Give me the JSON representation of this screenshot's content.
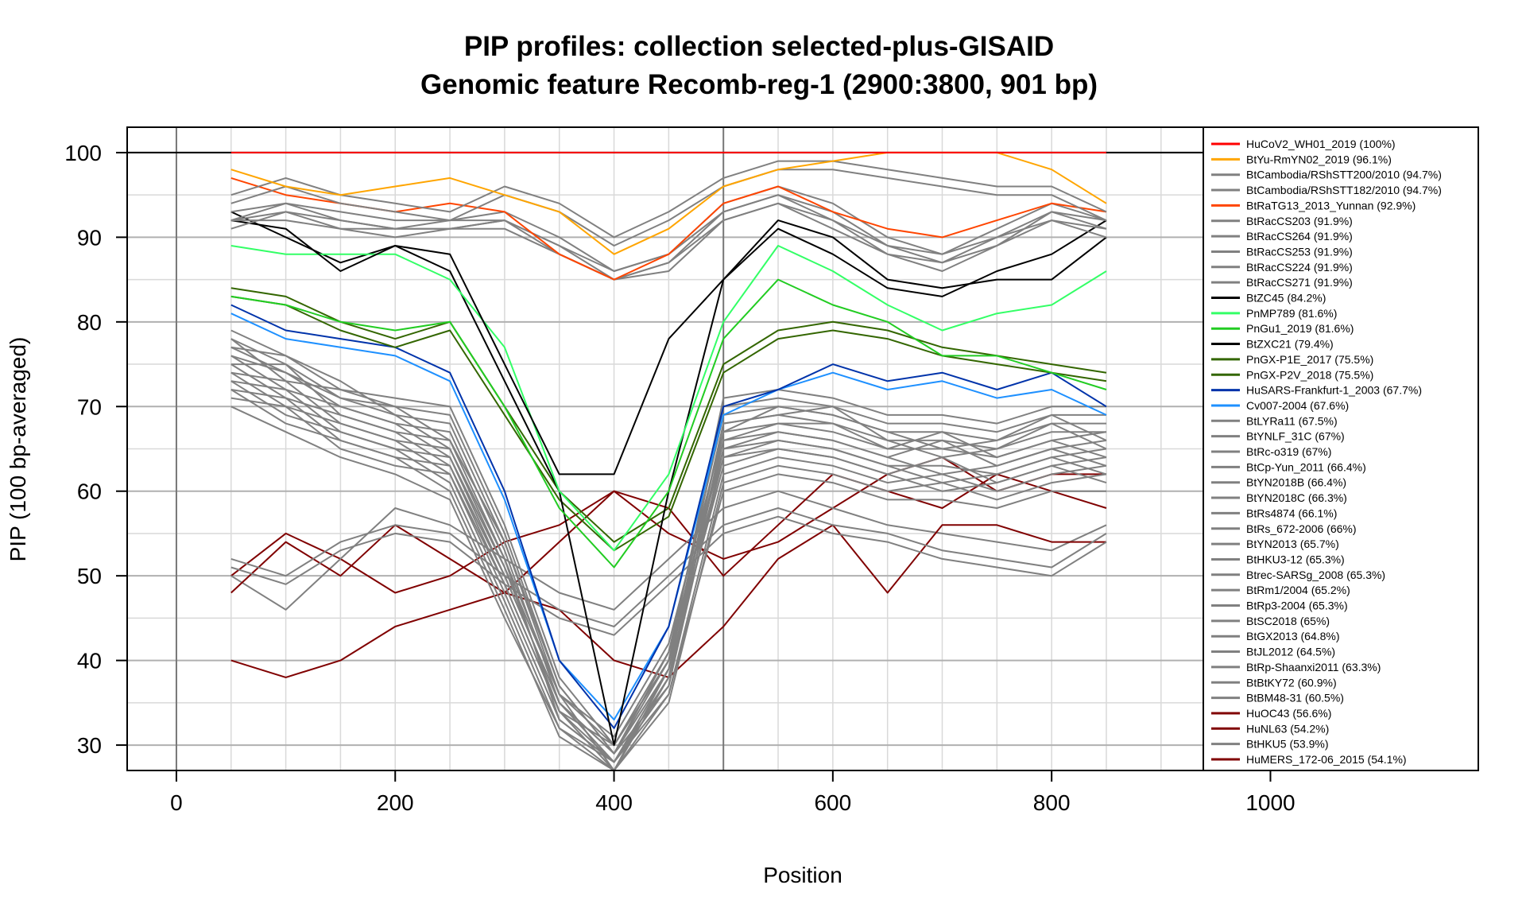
{
  "chart_data": {
    "type": "line",
    "title": "PIP profiles: collection selected-plus-GISAID",
    "subtitle": "Genomic feature Recomb-reg-1 (2900:3800, 901 bp)",
    "xlabel": "Position",
    "ylabel": "PIP (100 bp-averaged)",
    "xlim": [
      -45,
      1190
    ],
    "ylim": [
      27,
      103
    ],
    "xticks": [
      0,
      200,
      400,
      600,
      800,
      1000
    ],
    "yticks": [
      30,
      40,
      50,
      60,
      70,
      80,
      90,
      100
    ],
    "x_tick_labels": [
      "0",
      "200",
      "400",
      "600",
      "800",
      "1000"
    ],
    "y_tick_labels": [
      "30",
      "40",
      "50",
      "60",
      "70",
      "80",
      "90",
      "100"
    ],
    "grid": true,
    "legend_position": "right",
    "reference_lines": {
      "vertical_x": [
        0,
        500
      ],
      "horizontal_y": [
        100
      ]
    },
    "x": [
      50,
      100,
      150,
      200,
      250,
      300,
      350,
      400,
      450,
      500,
      550,
      600,
      650,
      700,
      750,
      800,
      850
    ],
    "series": [
      {
        "name": "HuCoV2_WH01_2019 (100%)",
        "color": "#ff0000",
        "values": [
          100,
          100,
          100,
          100,
          100,
          100,
          100,
          100,
          100,
          100,
          100,
          100,
          100,
          100,
          100,
          100,
          100
        ]
      },
      {
        "name": "BtYu-RmYN02_2019 (96.1%)",
        "color": "#ffa500",
        "values": [
          98,
          96,
          95,
          96,
          97,
          95,
          93,
          88,
          91,
          96,
          98,
          99,
          100,
          100,
          100,
          98,
          94
        ]
      },
      {
        "name": "BtCambodia/RShSTT200/2010 (94.7%)",
        "color": "#808080",
        "values": [
          95,
          97,
          95,
          94,
          93,
          96,
          94,
          90,
          93,
          97,
          99,
          99,
          98,
          97,
          96,
          96,
          93
        ]
      },
      {
        "name": "BtCambodia/RShSTT182/2010 (94.7%)",
        "color": "#808080",
        "values": [
          94,
          96,
          94,
          93,
          92,
          95,
          93,
          89,
          92,
          96,
          98,
          98,
          97,
          96,
          95,
          95,
          92
        ]
      },
      {
        "name": "BtRaTG13_2013_Yunnan (92.9%)",
        "color": "#ff4500",
        "values": [
          97,
          95,
          94,
          93,
          94,
          93,
          88,
          85,
          88,
          94,
          96,
          93,
          91,
          90,
          92,
          94,
          93
        ]
      },
      {
        "name": "BtRacCS203 (91.9%)",
        "color": "#808080",
        "values": [
          93,
          94,
          93,
          92,
          92,
          93,
          90,
          86,
          88,
          94,
          96,
          94,
          90,
          88,
          91,
          94,
          92
        ]
      },
      {
        "name": "BtRacCS264 (91.9%)",
        "color": "#808080",
        "values": [
          92,
          93,
          92,
          91,
          91,
          92,
          89,
          85,
          87,
          93,
          95,
          93,
          89,
          87,
          90,
          93,
          91
        ]
      },
      {
        "name": "BtRacCS253 (91.9%)",
        "color": "#808080",
        "values": [
          92,
          94,
          92,
          91,
          92,
          92,
          89,
          86,
          88,
          93,
          95,
          92,
          89,
          88,
          90,
          92,
          91
        ]
      },
      {
        "name": "BtRacCS224 (91.9%)",
        "color": "#808080",
        "values": [
          91,
          93,
          91,
          90,
          91,
          91,
          88,
          85,
          87,
          92,
          94,
          92,
          88,
          87,
          89,
          92,
          90
        ]
      },
      {
        "name": "BtRacCS271 (91.9%)",
        "color": "#808080",
        "values": [
          92,
          92,
          91,
          91,
          91,
          92,
          88,
          85,
          86,
          92,
          94,
          91,
          88,
          86,
          89,
          93,
          92
        ]
      },
      {
        "name": "BtZC45 (84.2%)",
        "color": "#000000",
        "values": [
          92,
          91,
          86,
          89,
          88,
          75,
          62,
          62,
          78,
          85,
          92,
          90,
          85,
          84,
          85,
          85,
          90
        ]
      },
      {
        "name": "PnMP789 (81.6%)",
        "color": "#33ff66",
        "values": [
          89,
          88,
          88,
          88,
          85,
          77,
          60,
          53,
          62,
          80,
          89,
          86,
          82,
          79,
          81,
          82,
          86
        ]
      },
      {
        "name": "PnGu1_2019 (81.6%)",
        "color": "#22cc22",
        "values": [
          83,
          82,
          80,
          79,
          80,
          70,
          58,
          51,
          60,
          78,
          85,
          82,
          80,
          76,
          76,
          74,
          72
        ]
      },
      {
        "name": "BtZXC21 (79.4%)",
        "color": "#000000",
        "values": [
          93,
          90,
          87,
          89,
          86,
          73,
          60,
          30,
          60,
          85,
          91,
          88,
          84,
          83,
          86,
          88,
          92
        ]
      },
      {
        "name": "PnGX-P1E_2017 (75.5%)",
        "color": "#336600",
        "values": [
          84,
          83,
          80,
          78,
          80,
          70,
          60,
          54,
          58,
          75,
          79,
          80,
          79,
          77,
          76,
          75,
          74
        ]
      },
      {
        "name": "PnGX-P2V_2018 (75.5%)",
        "color": "#336600",
        "values": [
          83,
          82,
          79,
          77,
          79,
          69,
          59,
          53,
          57,
          74,
          78,
          79,
          78,
          76,
          75,
          74,
          73
        ]
      },
      {
        "name": "HuSARS-Frankfurt-1_2003 (67.7%)",
        "color": "#0033aa",
        "values": [
          82,
          79,
          78,
          77,
          74,
          60,
          40,
          32,
          44,
          70,
          72,
          75,
          73,
          74,
          72,
          74,
          70
        ]
      },
      {
        "name": "Cv007-2004 (67.6%)",
        "color": "#1e90ff",
        "values": [
          81,
          78,
          77,
          76,
          73,
          59,
          40,
          33,
          44,
          69,
          72,
          74,
          72,
          73,
          71,
          72,
          69
        ]
      },
      {
        "name": "BtLYRa11 (67.5%)",
        "color": "#808080",
        "values": [
          79,
          76,
          72,
          71,
          70,
          56,
          38,
          30,
          40,
          71,
          72,
          71,
          69,
          69,
          68,
          70,
          70
        ]
      },
      {
        "name": "BtYNLF_31C (67%)",
        "color": "#808080",
        "values": [
          78,
          75,
          71,
          70,
          69,
          55,
          37,
          29,
          39,
          70,
          71,
          70,
          68,
          68,
          67,
          69,
          69
        ]
      },
      {
        "name": "BtRc-o319 (67%)",
        "color": "#808080",
        "values": [
          77,
          76,
          73,
          69,
          68,
          54,
          36,
          30,
          41,
          69,
          70,
          69,
          67,
          67,
          66,
          68,
          68
        ]
      },
      {
        "name": "BtCp-Yun_2011 (66.4%)",
        "color": "#808080",
        "values": [
          76,
          74,
          70,
          68,
          67,
          53,
          35,
          28,
          38,
          68,
          69,
          68,
          66,
          66,
          65,
          67,
          67
        ]
      },
      {
        "name": "BtYN2018B (66.4%)",
        "color": "#808080",
        "values": [
          78,
          73,
          72,
          70,
          66,
          52,
          36,
          31,
          42,
          67,
          70,
          69,
          67,
          65,
          66,
          69,
          66
        ]
      },
      {
        "name": "BtYN2018C (66.3%)",
        "color": "#808080",
        "values": [
          75,
          75,
          69,
          67,
          66,
          54,
          37,
          29,
          40,
          66,
          68,
          67,
          65,
          67,
          64,
          66,
          67
        ]
      },
      {
        "name": "BtRs4874 (66.1%)",
        "color": "#808080",
        "values": [
          77,
          74,
          71,
          69,
          65,
          51,
          34,
          27,
          39,
          68,
          69,
          70,
          66,
          64,
          65,
          68,
          65
        ]
      },
      {
        "name": "BtRs_672-2006 (66%)",
        "color": "#808080",
        "values": [
          76,
          72,
          70,
          68,
          64,
          50,
          35,
          29,
          41,
          65,
          67,
          66,
          64,
          66,
          63,
          65,
          66
        ]
      },
      {
        "name": "BtYN2013 (65.7%)",
        "color": "#808080",
        "values": [
          74,
          73,
          68,
          66,
          65,
          52,
          33,
          28,
          37,
          67,
          68,
          68,
          65,
          65,
          64,
          66,
          64
        ]
      },
      {
        "name": "BtHKU3-12 (65.3%)",
        "color": "#808080",
        "values": [
          75,
          71,
          69,
          67,
          63,
          49,
          34,
          30,
          40,
          64,
          66,
          65,
          63,
          63,
          62,
          64,
          65
        ]
      },
      {
        "name": "Btrec-SARSg_2008 (65.3%)",
        "color": "#808080",
        "values": [
          73,
          72,
          67,
          65,
          64,
          51,
          36,
          27,
          38,
          66,
          67,
          66,
          64,
          62,
          63,
          65,
          63
        ]
      },
      {
        "name": "BtRm1/2004 (65.2%)",
        "color": "#808080",
        "values": [
          74,
          70,
          68,
          66,
          62,
          48,
          33,
          28,
          39,
          63,
          65,
          64,
          62,
          64,
          61,
          63,
          64
        ]
      },
      {
        "name": "BtRp3-2004 (65.3%)",
        "color": "#808080",
        "values": [
          72,
          71,
          66,
          64,
          63,
          50,
          35,
          29,
          37,
          65,
          66,
          65,
          63,
          61,
          62,
          64,
          62
        ]
      },
      {
        "name": "BtSC2018 (65%)",
        "color": "#808080",
        "values": [
          73,
          69,
          67,
          65,
          61,
          47,
          32,
          27,
          36,
          62,
          64,
          63,
          61,
          62,
          60,
          62,
          63
        ]
      },
      {
        "name": "BtGX2013 (64.8%)",
        "color": "#808080",
        "values": [
          71,
          70,
          65,
          63,
          62,
          49,
          34,
          28,
          38,
          64,
          65,
          64,
          62,
          60,
          61,
          63,
          61
        ]
      },
      {
        "name": "BtJL2012 (64.5%)",
        "color": "#808080",
        "values": [
          72,
          68,
          66,
          64,
          60,
          46,
          31,
          27,
          35,
          61,
          63,
          62,
          60,
          61,
          59,
          61,
          62
        ]
      },
      {
        "name": "BtRp-Shaanxi2011 (63.3%)",
        "color": "#808080",
        "values": [
          70,
          67,
          64,
          62,
          59,
          45,
          32,
          28,
          36,
          60,
          62,
          61,
          59,
          59,
          58,
          60,
          60
        ]
      },
      {
        "name": "BtBtKY72 (60.9%)",
        "color": "#808080",
        "values": [
          52,
          50,
          54,
          56,
          55,
          50,
          46,
          44,
          50,
          56,
          58,
          56,
          55,
          53,
          52,
          51,
          55
        ]
      },
      {
        "name": "BtBM48-31 (60.5%)",
        "color": "#808080",
        "values": [
          51,
          49,
          53,
          55,
          54,
          49,
          45,
          43,
          49,
          55,
          57,
          55,
          54,
          52,
          51,
          50,
          54
        ]
      },
      {
        "name": "HuOC43 (56.6%)",
        "color": "#800000",
        "values": [
          48,
          54,
          50,
          56,
          52,
          48,
          54,
          60,
          58,
          50,
          56,
          62,
          60,
          58,
          62,
          60,
          58
        ]
      },
      {
        "name": "HuNL63 (54.2%)",
        "color": "#800000",
        "values": [
          40,
          38,
          40,
          44,
          46,
          48,
          46,
          40,
          38,
          44,
          52,
          56,
          48,
          56,
          56,
          54,
          54
        ]
      },
      {
        "name": "BtHKU5 (53.9%)",
        "color": "#808080",
        "values": [
          50,
          46,
          52,
          58,
          56,
          52,
          48,
          46,
          52,
          58,
          60,
          58,
          56,
          55,
          54,
          53,
          56
        ]
      },
      {
        "name": "HuMERS_172-06_2015 (54.1%)",
        "color": "#800000",
        "values": [
          50,
          55,
          52,
          48,
          50,
          54,
          56,
          60,
          55,
          52,
          54,
          58,
          62,
          64,
          60,
          62,
          62
        ]
      }
    ]
  }
}
